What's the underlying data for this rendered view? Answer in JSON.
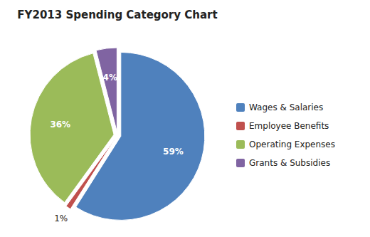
{
  "chart_data": {
    "type": "pie",
    "title": "FY2013 Spending  Category Chart",
    "categories": [
      "Wages & Salaries",
      "Employee Benefits",
      "Operating Expenses",
      "Grants & Subsidies"
    ],
    "values": [
      59,
      1,
      36,
      4
    ],
    "value_labels": [
      "59%",
      "1%",
      "36%",
      "4%"
    ],
    "colors": [
      "#4F81BD",
      "#C0504D",
      "#9BBB59",
      "#8064A2"
    ],
    "data_labels": true,
    "legend": "right"
  }
}
